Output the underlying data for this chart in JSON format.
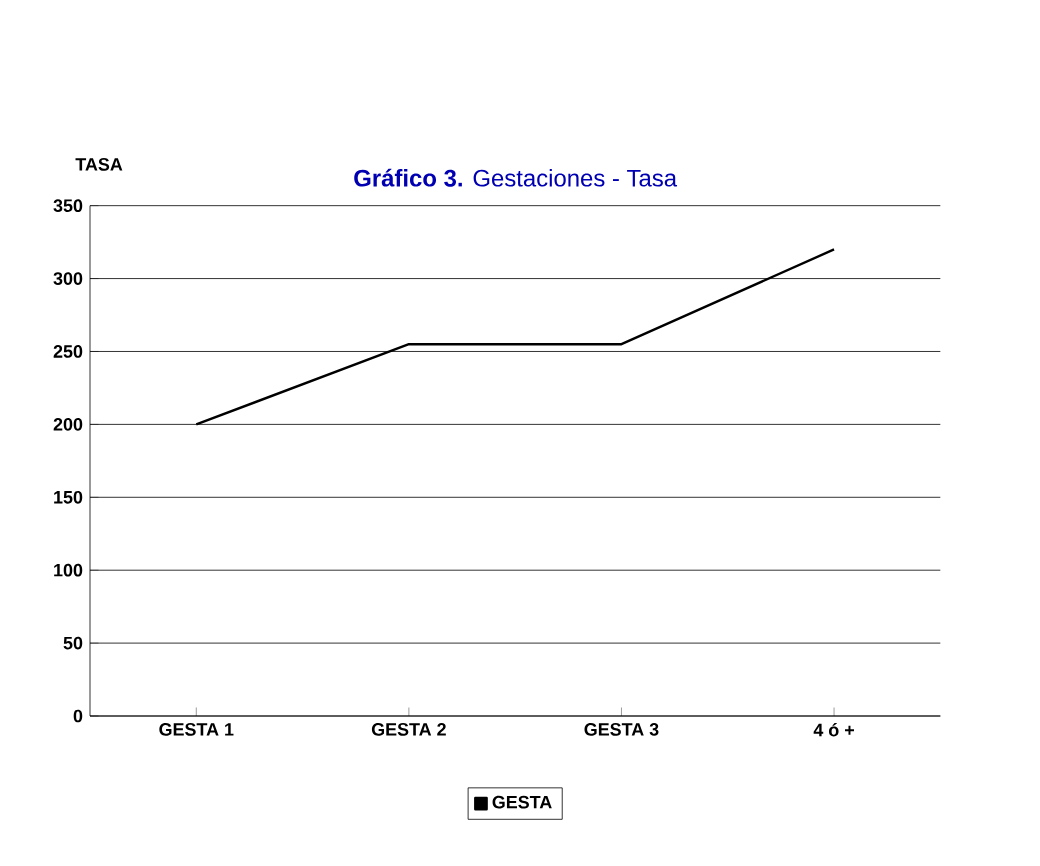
{
  "chart_data": {
    "type": "line",
    "title": "**Gráfico 3.** Gestaciones - Tasa",
    "ylabel": "TASA",
    "categories": [
      "GESTA 1",
      "GESTA 2",
      "GESTA 3",
      "4 ó +"
    ],
    "series": [
      {
        "name": "GESTA",
        "color": "#000000",
        "values": [
          200,
          255,
          255,
          320
        ]
      }
    ],
    "ylim": [
      0,
      350
    ],
    "yticks": [
      0,
      50,
      100,
      150,
      200,
      250,
      300,
      350
    ],
    "grid": "y",
    "legend": "bottom"
  }
}
